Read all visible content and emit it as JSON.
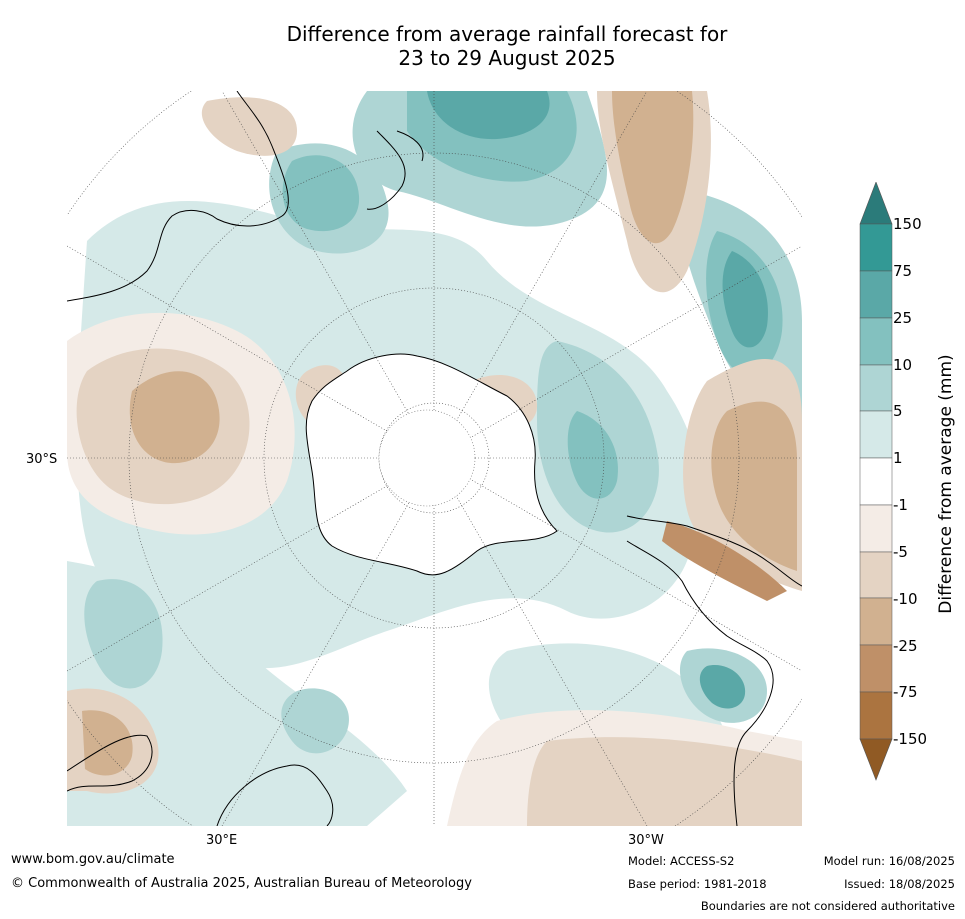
{
  "title": {
    "line1": "Difference from average rainfall forecast for",
    "line2": "23 to 29 August 2025"
  },
  "map": {
    "projection": "south-polar-stereographic",
    "lat_labels": [
      "30°S"
    ],
    "lon_labels": [
      "30°E",
      "30°W"
    ]
  },
  "colorbar": {
    "label": "Difference from average (mm)",
    "extend": "both",
    "ticks": [
      "150",
      "75",
      "25",
      "10",
      "5",
      "1",
      "-1",
      "-5",
      "-10",
      "-25",
      "-75",
      "-150"
    ],
    "colors": {
      "above_150": "#2b7b7a",
      "75_150": "#339995",
      "25_75": "#5aa8a7",
      "10_25": "#83c1bf",
      "5_10": "#aed5d4",
      "1_5": "#d5e9e8",
      "neutral": "#ffffff",
      "m5_m1": "#f4ece6",
      "m10_m5": "#e4d3c3",
      "m25_m10": "#d1b190",
      "m75_m25": "#bf9068",
      "m150_m75": "#ab7440",
      "below_m150": "#905a24"
    }
  },
  "footer": {
    "url": "www.bom.gov.au/climate",
    "copyright": "© Commonwealth of Australia 2025, Australian Bureau of Meteorology",
    "model": "Model: ACCESS-S2",
    "base_period": "Base period: 1981-2018",
    "model_run": "Model run: 16/08/2025",
    "issued": "Issued: 18/08/2025",
    "disclaimer": "Boundaries are not considered authoritative"
  }
}
